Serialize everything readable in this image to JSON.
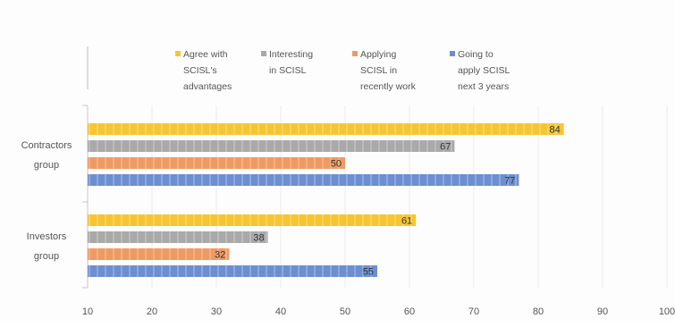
{
  "chart_data": {
    "type": "bar",
    "orientation": "horizontal",
    "title": "",
    "xlabel": "",
    "ylabel": "",
    "xlim": [
      10,
      100
    ],
    "x_ticks": [
      10,
      20,
      30,
      40,
      50,
      60,
      70,
      80,
      90,
      100
    ],
    "grid": true,
    "legend_position": "top",
    "categories": [
      {
        "label_lines": [
          "Contractors",
          "group"
        ]
      },
      {
        "label_lines": [
          "Investors",
          "group"
        ]
      }
    ],
    "series": [
      {
        "name_lines": [
          "Agree with",
          "SCISL's",
          "advantages"
        ],
        "color": "#f7c531",
        "values": [
          84,
          61
        ]
      },
      {
        "name_lines": [
          "Interesting",
          "in SCISL"
        ],
        "color": "#a9a9a9",
        "values": [
          67,
          38
        ]
      },
      {
        "name_lines": [
          "Applying",
          "SCISL  in",
          "recently work"
        ],
        "color": "#ef9a62",
        "values": [
          50,
          32
        ]
      },
      {
        "name_lines": [
          "Going to",
          "apply SCISL",
          "next 3 years"
        ],
        "color": "#6d8fd1",
        "values": [
          77,
          55
        ]
      }
    ]
  }
}
